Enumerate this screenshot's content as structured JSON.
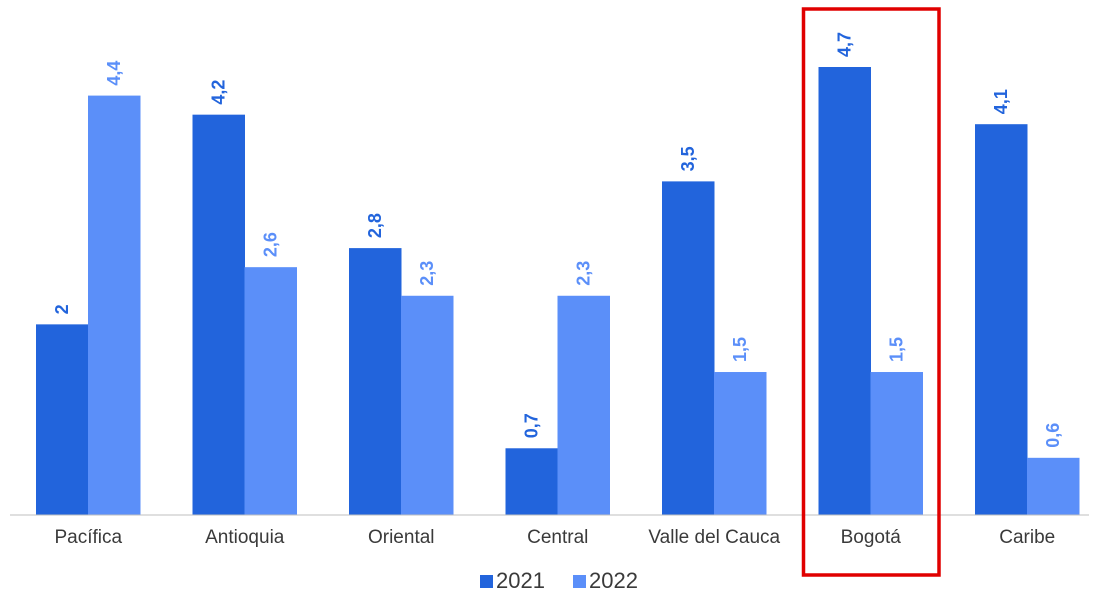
{
  "chart_data": {
    "type": "bar",
    "categories": [
      "Pacífica",
      "Antioquia",
      "Oriental",
      "Central",
      "Valle del Cauca",
      "Bogotá",
      "Caribe"
    ],
    "series": [
      {
        "name": "2021",
        "values": [
          2,
          4.2,
          2.8,
          0.7,
          3.5,
          4.7,
          4.1
        ],
        "labels": [
          "2",
          "4,2",
          "2,8",
          "0,7",
          "3,5",
          "4,7",
          "4,1"
        ],
        "color": "#2264dc"
      },
      {
        "name": "2022",
        "values": [
          4.4,
          2.6,
          2.3,
          2.3,
          1.5,
          1.5,
          0.6
        ],
        "labels": [
          "4,4",
          "2,6",
          "2,3",
          "2,3",
          "1,5",
          "1,5",
          "0,6"
        ],
        "color": "#5b8ff9"
      }
    ],
    "ylim": [
      0,
      5
    ],
    "grid": false,
    "legend_position": "bottom",
    "highlight_category": "Bogotá",
    "highlight_color": "#e00000"
  }
}
